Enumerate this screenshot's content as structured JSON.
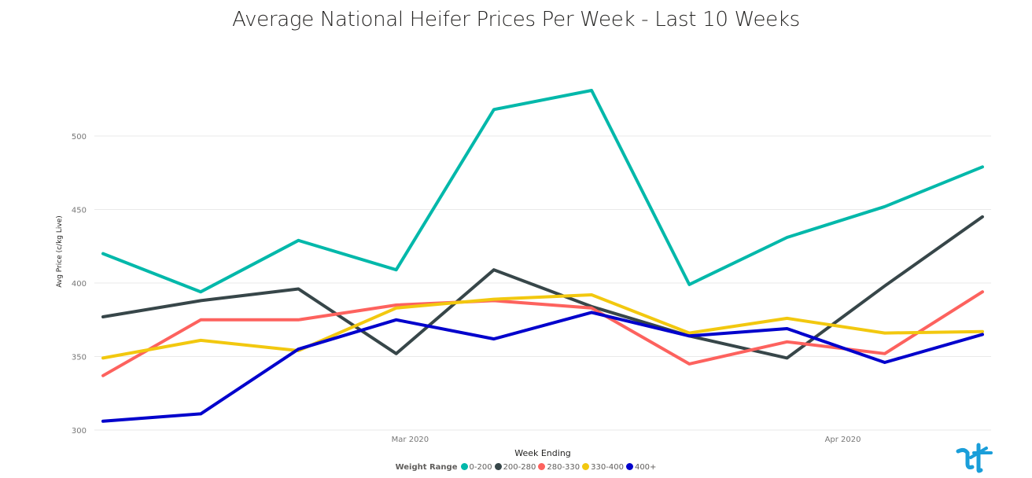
{
  "chart_data": {
    "type": "line",
    "title": "Average National Heifer Prices Per Week - Last 10 Weeks",
    "xlabel": "Week Ending",
    "ylabel": "Avg Price (c/kg Live)",
    "ylim": [
      300,
      530
    ],
    "yticks": [
      300,
      350,
      400,
      450,
      500
    ],
    "x": [
      "2020-02-08",
      "2020-02-15",
      "2020-02-22",
      "2020-02-29",
      "2020-03-07",
      "2020-03-14",
      "2020-03-21",
      "2020-03-28",
      "2020-04-04",
      "2020-04-11"
    ],
    "xticks": [
      {
        "label": "Mar 2020",
        "date": "2020-03-01"
      },
      {
        "label": "Apr 2020",
        "date": "2020-04-01"
      }
    ],
    "grid": true,
    "legend_title": "Weight Range",
    "legend_position": "bottom-center",
    "series": [
      {
        "name": "0-200",
        "color": "#01b8aa",
        "values": [
          420,
          394,
          429,
          409,
          518,
          531,
          399,
          431,
          452,
          479
        ]
      },
      {
        "name": "200-280",
        "color": "#374649",
        "values": [
          377,
          388,
          396,
          352,
          409,
          384,
          364,
          349,
          398,
          445
        ]
      },
      {
        "name": "280-330",
        "color": "#fd625e",
        "values": [
          337,
          375,
          375,
          385,
          388,
          383,
          345,
          360,
          352,
          394
        ]
      },
      {
        "name": "330-400",
        "color": "#f2c80f",
        "values": [
          349,
          361,
          354,
          383,
          389,
          392,
          366,
          376,
          366,
          367
        ]
      },
      {
        "name": "400+",
        "color": "#0000cc",
        "values": [
          306,
          311,
          355,
          375,
          362,
          380,
          364,
          369,
          346,
          365
        ]
      }
    ]
  }
}
